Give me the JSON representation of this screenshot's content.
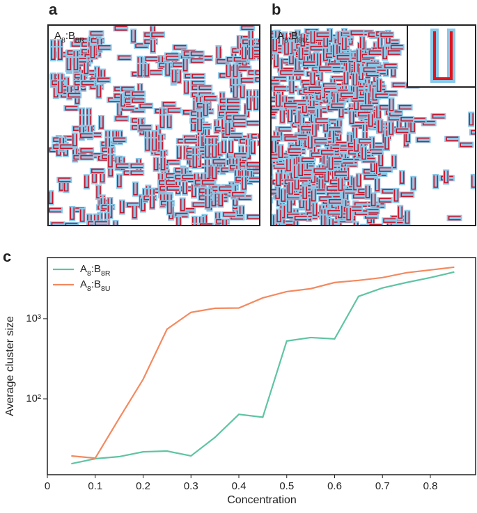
{
  "panels": [
    {
      "label": "a",
      "text": [
        "A",
        "8",
        ":B",
        "8R"
      ]
    },
    {
      "label": "b",
      "text": [
        "A",
        "8",
        ":B",
        "8U"
      ]
    }
  ],
  "chart_data": {
    "type": "line",
    "panel_label": "c",
    "xlabel": "Concentration",
    "ylabel": "Average cluster size",
    "x": [
      0.05,
      0.1,
      0.15,
      0.2,
      0.25,
      0.3,
      0.35,
      0.4,
      0.45,
      0.5,
      0.55,
      0.6,
      0.65,
      0.7,
      0.75,
      0.8,
      0.85
    ],
    "series": [
      {
        "name": [
          "A",
          "8",
          ":B",
          "8R"
        ],
        "color": "#5fc4a4",
        "values": [
          15.5,
          17.9,
          19,
          21.8,
          22.3,
          19.4,
          33,
          64,
          59,
          527,
          582,
          560,
          1900,
          2420,
          2830,
          3260,
          3830
        ]
      },
      {
        "name": [
          "A",
          "8",
          ":B",
          "8U"
        ],
        "color": "#f4895f",
        "values": [
          19.4,
          18.2,
          57,
          175,
          741,
          1200,
          1350,
          1360,
          1820,
          2180,
          2370,
          2830,
          3010,
          3260,
          3750,
          4060,
          4400
        ]
      }
    ],
    "xlim": [
      0,
      0.896
    ],
    "xticks": [
      0,
      0.1,
      0.2,
      0.3,
      0.4,
      0.5,
      0.6,
      0.7,
      0.8
    ],
    "ylim": [
      11.3,
      5800
    ],
    "yscale": "log",
    "yticks": [
      {
        "value": 100,
        "label": "10²"
      },
      {
        "value": 1000,
        "label": "10³"
      }
    ],
    "grid": false,
    "legend": "upper left"
  }
}
